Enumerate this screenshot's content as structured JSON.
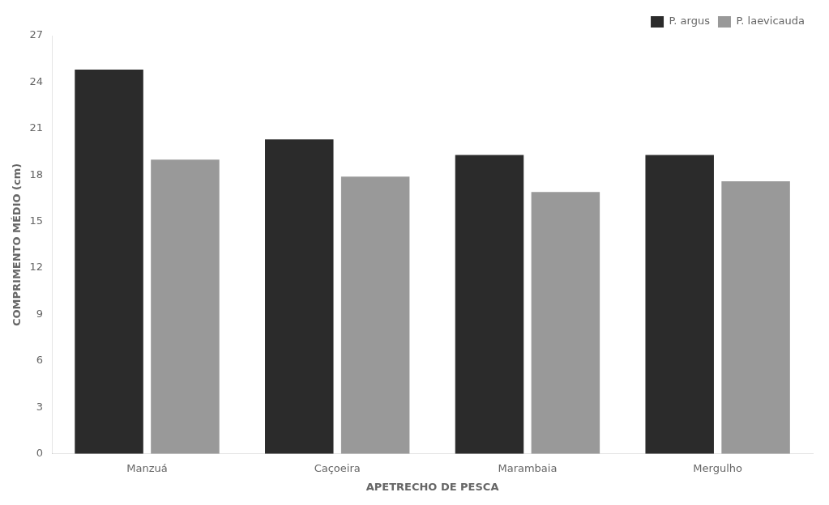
{
  "chart_data": {
    "type": "bar",
    "categories": [
      "Manzuá",
      "Caçoeira",
      "Marambaia",
      "Mergulho"
    ],
    "series": [
      {
        "name": "P. argus",
        "color": "#2b2b2b",
        "values": [
          24.8,
          20.3,
          19.3,
          19.3
        ]
      },
      {
        "name": "P. laevicauda",
        "color": "#999999",
        "values": [
          19.0,
          17.9,
          16.9,
          17.6
        ]
      }
    ],
    "xlabel": "APETRECHO DE PESCA",
    "ylabel": "COMPRIMENTO MÉDIO (cm)",
    "ylim": [
      0,
      27
    ],
    "yticks": [
      0,
      3,
      6,
      9,
      12,
      15,
      18,
      21,
      24,
      27
    ],
    "grid": false,
    "legend": "upper right"
  }
}
